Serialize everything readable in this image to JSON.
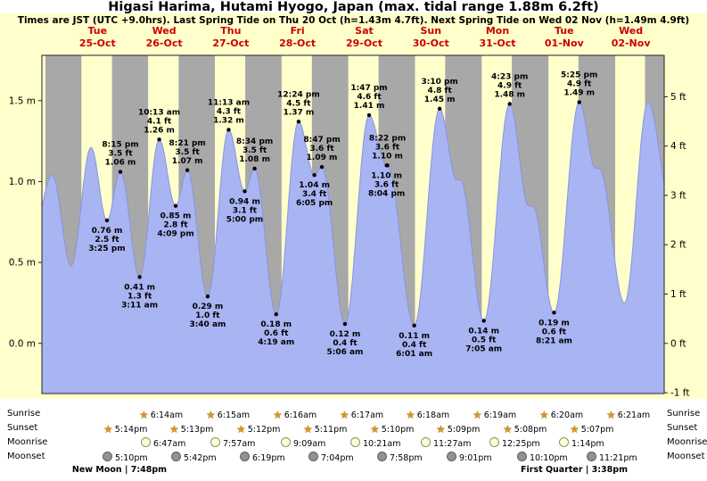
{
  "title": "Higasi Harima, Hutami Hyogo, Japan (max. tidal range 1.88m 6.2ft)",
  "subtitle": "Times are JST (UTC +9.0hrs). Last Spring Tide on Thu 20 Oct (h=1.43m 4.7ft). Next Spring Tide on Wed 02 Nov (h=1.49m 4.9ft)",
  "colors": {
    "day_band": "#ffffcc",
    "night_band": "#a8a8a8",
    "tide_fill": "#a9b4f2",
    "tide_stroke": "#8795e0",
    "date_red": "#cc0000",
    "axis": "#222222"
  },
  "chart_data": {
    "type": "area",
    "xlim_hours": [
      -8,
      216
    ],
    "ylim_m": [
      -0.31,
      1.78
    ],
    "days": [
      {
        "weekday": "Tue",
        "date": "25-Oct"
      },
      {
        "weekday": "Wed",
        "date": "26-Oct"
      },
      {
        "weekday": "Thu",
        "date": "27-Oct"
      },
      {
        "weekday": "Fri",
        "date": "28-Oct"
      },
      {
        "weekday": "Sat",
        "date": "29-Oct"
      },
      {
        "weekday": "Sun",
        "date": "30-Oct"
      },
      {
        "weekday": "Mon",
        "date": "31-Oct"
      },
      {
        "weekday": "Tue",
        "date": "01-Nov"
      },
      {
        "weekday": "Wed",
        "date": "02-Nov"
      }
    ],
    "y_ticks_m": [
      {
        "label": "1.5 m",
        "m": 1.5
      },
      {
        "label": "1.0 m",
        "m": 1.0
      },
      {
        "label": "0.5 m",
        "m": 0.5
      },
      {
        "label": "0.0 m",
        "m": 0.0
      }
    ],
    "y_ticks_ft": [
      {
        "label": "5 ft",
        "ft": 5
      },
      {
        "label": "4 ft",
        "ft": 4
      },
      {
        "label": "3 ft",
        "ft": 3
      },
      {
        "label": "2 ft",
        "ft": 2
      },
      {
        "label": "1 ft",
        "ft": 1
      },
      {
        "label": "0 ft",
        "ft": 0
      },
      {
        "label": "-1 ft",
        "ft": -1
      }
    ],
    "tide_events": [
      {
        "t": 15.42,
        "m": 0.76,
        "type": "low",
        "time": "3:25 pm",
        "ft": "2.5 ft"
      },
      {
        "t": 20.25,
        "m": 1.06,
        "type": "high",
        "time": "8:15 pm",
        "ft": "3.5 ft"
      },
      {
        "t": 27.18,
        "m": 0.41,
        "type": "low",
        "time": "3:11 am",
        "ft": "1.3 ft"
      },
      {
        "t": 34.22,
        "m": 1.26,
        "type": "high",
        "time": "10:13 am",
        "ft": "4.1 ft"
      },
      {
        "t": 40.15,
        "m": 0.85,
        "type": "low",
        "time": "4:09 pm",
        "ft": "2.8 ft"
      },
      {
        "t": 44.35,
        "m": 1.07,
        "type": "high",
        "time": "8:21 pm",
        "ft": "3.5 ft"
      },
      {
        "t": 51.67,
        "m": 0.29,
        "type": "low",
        "time": "3:40 am",
        "ft": "1.0 ft"
      },
      {
        "t": 59.22,
        "m": 1.32,
        "type": "high",
        "time": "11:13 am",
        "ft": "4.3 ft"
      },
      {
        "t": 65.0,
        "m": 0.94,
        "type": "low",
        "time": "5:00 pm",
        "ft": "3.1 ft"
      },
      {
        "t": 68.57,
        "m": 1.08,
        "type": "high",
        "time": "8:34 pm",
        "ft": "3.5 ft"
      },
      {
        "t": 76.32,
        "m": 0.18,
        "type": "low",
        "time": "4:19 am",
        "ft": "0.6 ft"
      },
      {
        "t": 84.4,
        "m": 1.37,
        "type": "high",
        "time": "12:24 pm",
        "ft": "4.5 ft"
      },
      {
        "t": 90.08,
        "m": 1.04,
        "type": "low",
        "time": "6:05 pm",
        "ft": "3.4 ft"
      },
      {
        "t": 92.78,
        "m": 1.09,
        "type": "high",
        "time": "8:47 pm",
        "ft": "3.6 ft"
      },
      {
        "t": 101.1,
        "m": 0.12,
        "type": "low",
        "time": "5:06 am",
        "ft": "0.4 ft"
      },
      {
        "t": 109.78,
        "m": 1.41,
        "type": "high",
        "time": "1:47 pm",
        "ft": "4.6 ft"
      },
      {
        "t": 116.07,
        "m": 1.1,
        "type": "low",
        "time": "8:04 pm",
        "ft": "3.6 ft"
      },
      {
        "t": 116.37,
        "m": 1.1,
        "type": "high",
        "time": "8:22 pm",
        "ft": "3.6 ft"
      },
      {
        "t": 126.02,
        "m": 0.11,
        "type": "low",
        "time": "6:01 am",
        "ft": "0.4 ft"
      },
      {
        "t": 135.17,
        "m": 1.45,
        "type": "high",
        "time": "3:10 pm",
        "ft": "4.8 ft"
      },
      {
        "t": 151.08,
        "m": 0.14,
        "type": "low",
        "time": "7:05 am",
        "ft": "0.5 ft"
      },
      {
        "t": 160.38,
        "m": 1.48,
        "type": "high",
        "time": "4:23 pm",
        "ft": "4.9 ft"
      },
      {
        "t": 176.35,
        "m": 0.19,
        "type": "low",
        "time": "8:21 am",
        "ft": "0.6 ft"
      },
      {
        "t": 185.42,
        "m": 1.49,
        "type": "high",
        "time": "5:25 pm",
        "ft": "4.9 ft"
      }
    ],
    "curve_support": [
      [
        -11.25,
        0.68
      ],
      [
        -4.33,
        1.04
      ],
      [
        2.5,
        0.48
      ],
      [
        9.67,
        1.21
      ],
      [
        141.3,
        1.01
      ],
      [
        142.6,
        1.01
      ],
      [
        167.2,
        0.85
      ],
      [
        168.6,
        0.85
      ],
      [
        191.3,
        1.08
      ],
      [
        192.6,
        1.08
      ],
      [
        201.7,
        0.25
      ],
      [
        210.17,
        1.49
      ],
      [
        219.0,
        0.8
      ]
    ],
    "night_bands": [
      [
        -6.75,
        6.22
      ],
      [
        17.23,
        30.23
      ],
      [
        41.22,
        54.25
      ],
      [
        65.2,
        78.27
      ],
      [
        89.18,
        102.28
      ],
      [
        113.17,
        126.3
      ],
      [
        137.15,
        150.32
      ],
      [
        161.13,
        174.33
      ],
      [
        185.12,
        198.35
      ],
      [
        209.1,
        216.0
      ]
    ]
  },
  "almanac": {
    "rows": [
      {
        "label": "Sunrise",
        "icon": "sunrise-star-icon",
        "entries": [
          {
            "time": "6:14am",
            "t": 30.23
          },
          {
            "time": "6:15am",
            "t": 54.25
          },
          {
            "time": "6:16am",
            "t": 78.27
          },
          {
            "time": "6:17am",
            "t": 102.28
          },
          {
            "time": "6:18am",
            "t": 126.3
          },
          {
            "time": "6:19am",
            "t": 150.32
          },
          {
            "time": "6:20am",
            "t": 174.33
          },
          {
            "time": "6:21am",
            "t": 198.35
          }
        ]
      },
      {
        "label": "Sunset",
        "icon": "sunset-star-icon",
        "entries": [
          {
            "time": "5:14pm",
            "t": 17.23
          },
          {
            "time": "5:13pm",
            "t": 41.22
          },
          {
            "time": "5:12pm",
            "t": 65.2
          },
          {
            "time": "5:11pm",
            "t": 89.18
          },
          {
            "time": "5:10pm",
            "t": 113.17
          },
          {
            "time": "5:09pm",
            "t": 137.15
          },
          {
            "time": "5:08pm",
            "t": 161.13
          },
          {
            "time": "5:07pm",
            "t": 185.12
          }
        ]
      },
      {
        "label": "Moonrise",
        "icon": "moonrise-icon",
        "entries": [
          {
            "time": "6:47am",
            "t": 30.78
          },
          {
            "time": "7:57am",
            "t": 55.95
          },
          {
            "time": "9:09am",
            "t": 81.15
          },
          {
            "time": "10:21am",
            "t": 106.35
          },
          {
            "time": "11:27am",
            "t": 131.45
          },
          {
            "time": "12:25pm",
            "t": 156.42
          },
          {
            "time": "1:14pm",
            "t": 181.23
          }
        ]
      },
      {
        "label": "Moonset",
        "icon": "moonset-icon",
        "entries": [
          {
            "time": "5:10pm",
            "t": 17.17
          },
          {
            "time": "5:42pm",
            "t": 41.7
          },
          {
            "time": "6:19pm",
            "t": 66.32
          },
          {
            "time": "7:04pm",
            "t": 91.07
          },
          {
            "time": "7:58pm",
            "t": 115.97
          },
          {
            "time": "9:01pm",
            "t": 141.02
          },
          {
            "time": "10:10pm",
            "t": 166.17
          },
          {
            "time": "11:21pm",
            "t": 191.35
          }
        ]
      }
    ],
    "notes": [
      {
        "text": "New Moon | 7:48pm",
        "t": 19.8
      },
      {
        "text": "First Quarter | 3:38pm",
        "t": 183.63
      }
    ]
  }
}
